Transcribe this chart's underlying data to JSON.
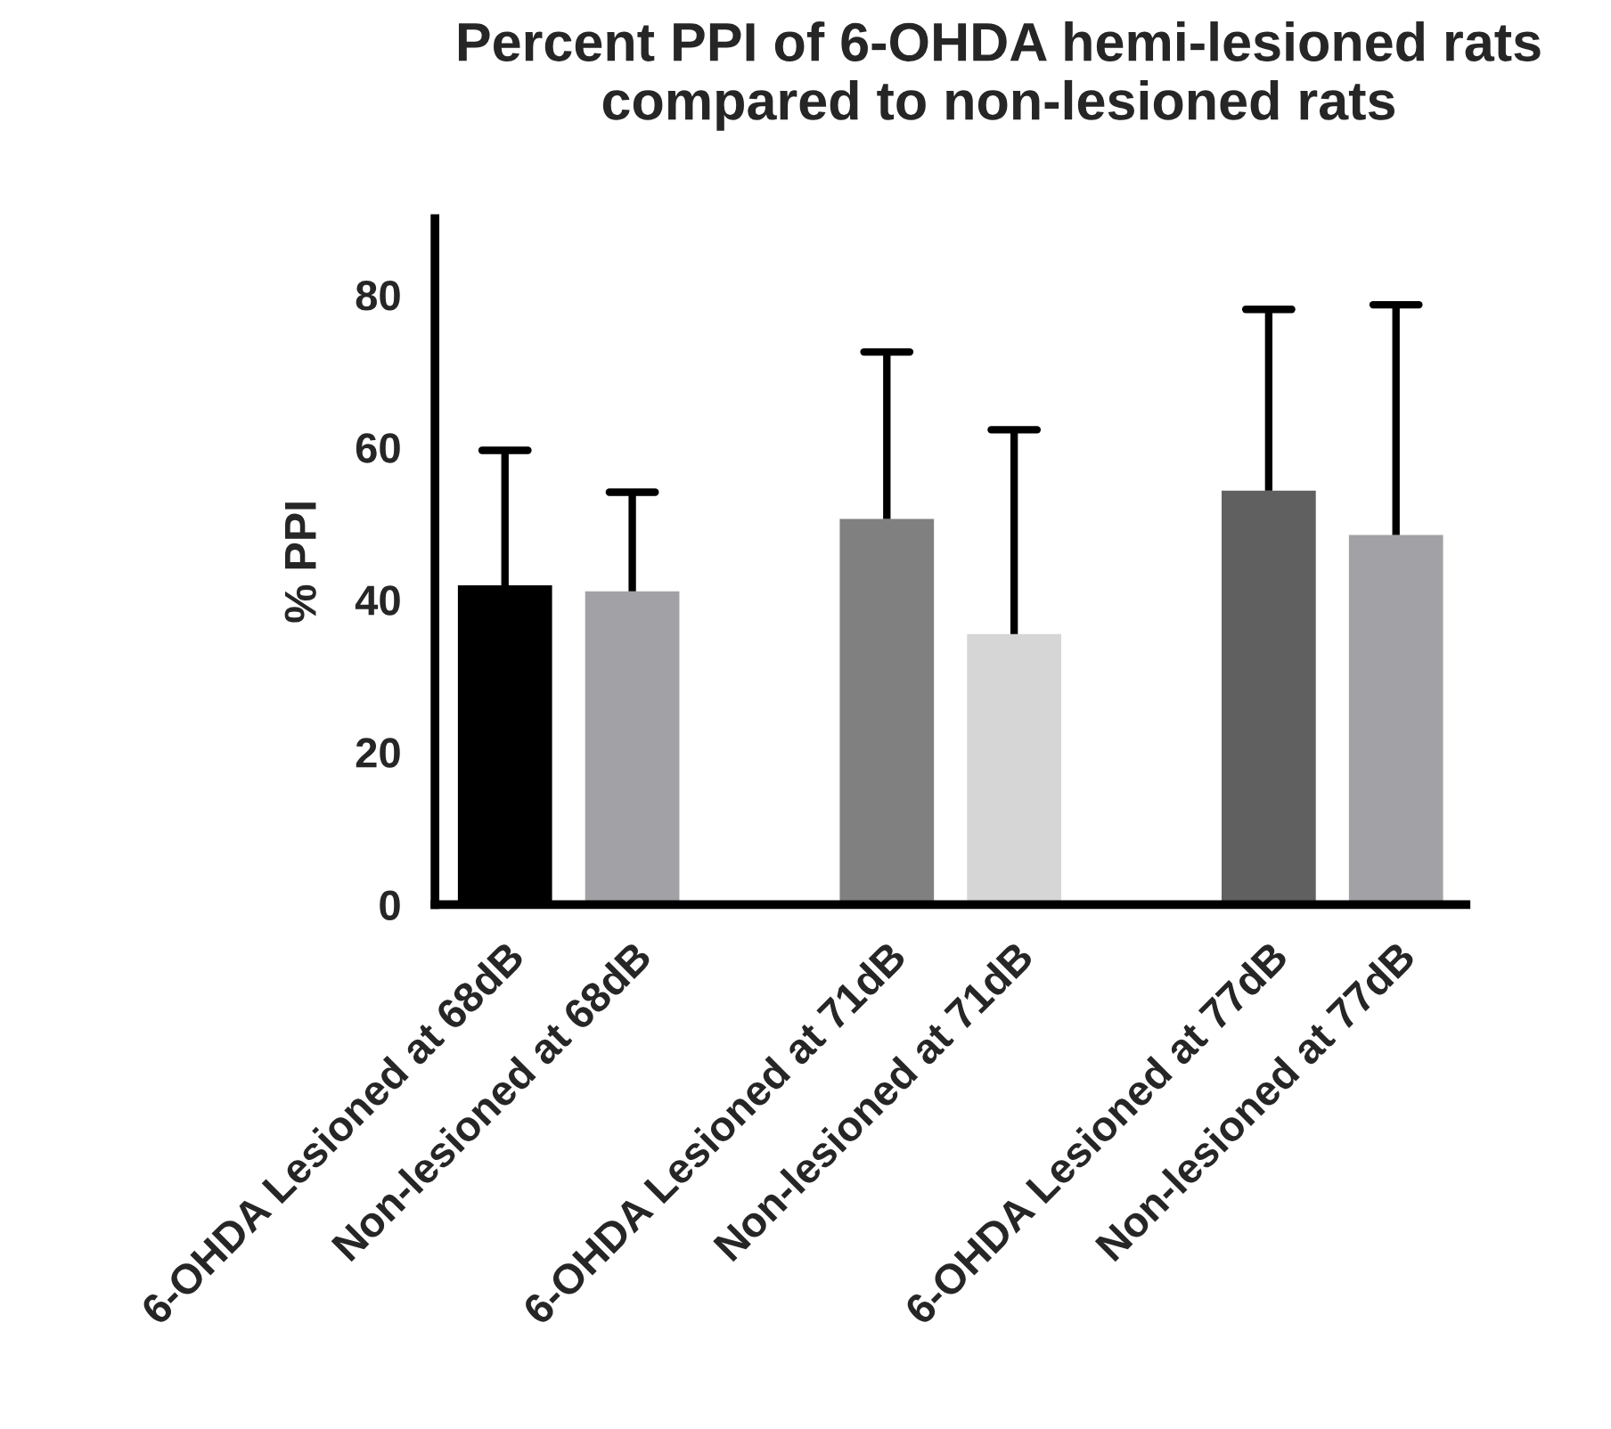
{
  "chart_data": {
    "type": "bar",
    "title": "Percent PPI of 6-OHDA hemi-lesioned rats\ncompared to non-lesioned rats",
    "ylabel": "% PPI",
    "categories": [
      "6-OHDA Lesioned at 68dB",
      "Non-lesioned at 68dB",
      null,
      "6-OHDA Lesioned at 71dB",
      "Non-lesioned at 71dB",
      null,
      "6-OHDA Lesioned at 77dB",
      "Non-lesioned at 77dB"
    ],
    "values": [
      41.9,
      41.1,
      null,
      50.6,
      35.5,
      null,
      54.3,
      48.5
    ],
    "colors": [
      "#000000",
      "#a2a1a5",
      "#ffffff",
      "#808080",
      "#d6d6d6",
      "#ffffff",
      "#606060",
      "#a2a1a5"
    ],
    "errors": [
      [
        41.9,
        59.6
      ],
      [
        41.1,
        54.1
      ],
      null,
      [
        50.6,
        72.5
      ],
      [
        35.5,
        62.3
      ],
      null,
      [
        54.3,
        78.1
      ],
      [
        48.5,
        78.7
      ]
    ],
    "ylim": [
      0,
      90
    ],
    "yticks": [
      0,
      20,
      40,
      60,
      80
    ],
    "grid": false,
    "legend": false
  }
}
